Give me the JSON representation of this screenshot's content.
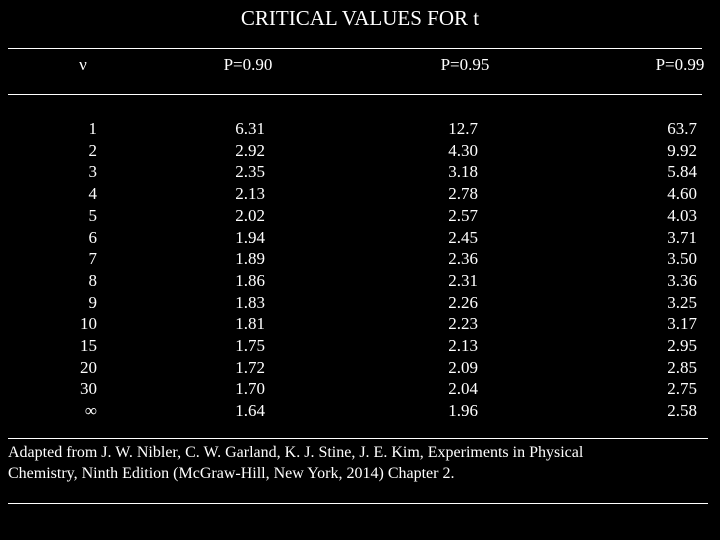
{
  "title": "CRITICAL VALUES FOR t",
  "table": {
    "headers": [
      "ν",
      "P=0.90",
      "P=0.95",
      "P=0.99"
    ],
    "rows": [
      [
        "1",
        "6.31",
        "12.7",
        "63.7"
      ],
      [
        "2",
        "2.92",
        "4.30",
        "9.92"
      ],
      [
        "3",
        "2.35",
        "3.18",
        "5.84"
      ],
      [
        "4",
        "2.13",
        "2.78",
        "4.60"
      ],
      [
        "5",
        "2.02",
        "2.57",
        "4.03"
      ],
      [
        "6",
        "1.94",
        "2.45",
        "3.71"
      ],
      [
        "7",
        "1.89",
        "2.36",
        "3.50"
      ],
      [
        "8",
        "1.86",
        "2.31",
        "3.36"
      ],
      [
        "9",
        "1.83",
        "2.26",
        "3.25"
      ],
      [
        "10",
        "1.81",
        "2.23",
        "3.17"
      ],
      [
        "15",
        "1.75",
        "2.13",
        "2.95"
      ],
      [
        "20",
        "1.72",
        "2.09",
        "2.85"
      ],
      [
        "30",
        "1.70",
        "2.04",
        "2.75"
      ],
      [
        "∞",
        "1.64",
        "1.96",
        "2.58"
      ]
    ]
  },
  "footnote": {
    "lines": [
      "Adapted from J. W. Nibler, C. W. Garland, K. J. Stine, J. E. Kim, Experiments in Physical",
      "Chemistry, Ninth Edition (McGraw-Hill, New York, 2014) Chapter 2."
    ]
  }
}
